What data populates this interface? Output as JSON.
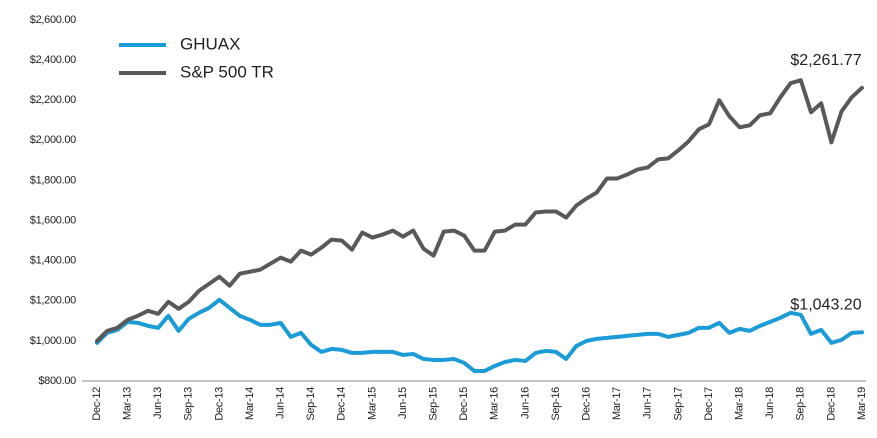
{
  "chart_data": {
    "type": "line",
    "categories": [
      "Dec-12",
      null,
      null,
      "Mar-13",
      null,
      null,
      "Jun-13",
      null,
      null,
      "Sep-13",
      null,
      null,
      "Dec-13",
      null,
      null,
      "Mar-14",
      null,
      null,
      "Jun-14",
      null,
      null,
      "Sep-14",
      null,
      null,
      "Dec-14",
      null,
      null,
      "Mar-15",
      null,
      null,
      "Jun-15",
      null,
      null,
      "Sep-15",
      null,
      null,
      "Dec-15",
      null,
      null,
      "Mar-16",
      null,
      null,
      "Jun-16",
      null,
      null,
      "Sep-16",
      null,
      null,
      "Dec-16",
      null,
      null,
      "Mar-17",
      null,
      null,
      "Jun-17",
      null,
      null,
      "Sep-17",
      null,
      null,
      "Dec-17",
      null,
      null,
      "Mar-18",
      null,
      null,
      "Jun-18",
      null,
      null,
      "Sep-18",
      null,
      null,
      "Dec-18",
      null,
      null,
      "Mar-19"
    ],
    "series": [
      {
        "name": "GHUAX",
        "color": "#1b9bd7",
        "values": [
          990,
          1040,
          1055,
          1095,
          1090,
          1075,
          1065,
          1125,
          1050,
          1110,
          1140,
          1165,
          1205,
          1165,
          1125,
          1105,
          1080,
          1080,
          1090,
          1020,
          1040,
          980,
          945,
          960,
          955,
          940,
          940,
          945,
          945,
          945,
          930,
          935,
          910,
          905,
          905,
          910,
          890,
          850,
          850,
          875,
          895,
          905,
          900,
          940,
          950,
          945,
          910,
          975,
          1000,
          1010,
          1015,
          1020,
          1025,
          1030,
          1035,
          1035,
          1020,
          1030,
          1040,
          1065,
          1065,
          1090,
          1040,
          1060,
          1050,
          1075,
          1095,
          1115,
          1140,
          1130,
          1035,
          1055,
          990,
          1005,
          1040,
          1043.2
        ],
        "value_labels": [
          null,
          null,
          null,
          null,
          null,
          null,
          null,
          null,
          null,
          null,
          null,
          null,
          null,
          null,
          null,
          null,
          null,
          null,
          null,
          null,
          null,
          null,
          null,
          null,
          null,
          null,
          null,
          null,
          null,
          null,
          null,
          null,
          null,
          null,
          null,
          null,
          null,
          null,
          null,
          null,
          null,
          null,
          null,
          null,
          null,
          null,
          null,
          null,
          null,
          null,
          null,
          null,
          null,
          null,
          null,
          null,
          null,
          null,
          null,
          null,
          null,
          null,
          null,
          null,
          null,
          null,
          null,
          null,
          null,
          null,
          null,
          null,
          null,
          null,
          null,
          "$1,043.20"
        ]
      },
      {
        "name": "S&P 500 TR",
        "color": "#58595b",
        "values": [
          1000,
          1050,
          1065,
          1105,
          1125,
          1150,
          1135,
          1195,
          1160,
          1195,
          1250,
          1285,
          1320,
          1275,
          1335,
          1345,
          1355,
          1385,
          1415,
          1395,
          1450,
          1430,
          1465,
          1505,
          1500,
          1455,
          1540,
          1515,
          1530,
          1550,
          1520,
          1550,
          1460,
          1425,
          1545,
          1550,
          1525,
          1450,
          1450,
          1545,
          1550,
          1580,
          1580,
          1640,
          1645,
          1645,
          1615,
          1675,
          1710,
          1740,
          1810,
          1810,
          1830,
          1855,
          1865,
          1905,
          1910,
          1950,
          1995,
          2055,
          2080,
          2200,
          2120,
          2065,
          2075,
          2125,
          2135,
          2215,
          2285,
          2300,
          2140,
          2185,
          1990,
          2145,
          2215,
          2261.77
        ],
        "value_labels": [
          null,
          null,
          null,
          null,
          null,
          null,
          null,
          null,
          null,
          null,
          null,
          null,
          null,
          null,
          null,
          null,
          null,
          null,
          null,
          null,
          null,
          null,
          null,
          null,
          null,
          null,
          null,
          null,
          null,
          null,
          null,
          null,
          null,
          null,
          null,
          null,
          null,
          null,
          null,
          null,
          null,
          null,
          null,
          null,
          null,
          null,
          null,
          null,
          null,
          null,
          null,
          null,
          null,
          null,
          null,
          null,
          null,
          null,
          null,
          null,
          null,
          null,
          null,
          null,
          null,
          null,
          null,
          null,
          null,
          null,
          null,
          null,
          null,
          null,
          null,
          "$2,261.77"
        ]
      }
    ],
    "ylim": [
      800,
      2600
    ],
    "yticks": [
      {
        "value": 800,
        "label": "$800.00"
      },
      {
        "value": 1000,
        "label": "$1,000.00"
      },
      {
        "value": 1200,
        "label": "$1,200.00"
      },
      {
        "value": 1400,
        "label": "$1,400.00"
      },
      {
        "value": 1600,
        "label": "$1,600.00"
      },
      {
        "value": 1800,
        "label": "$1,800.00"
      },
      {
        "value": 2000,
        "label": "$2,000.00"
      },
      {
        "value": 2200,
        "label": "$2,200.00"
      },
      {
        "value": 2400,
        "label": "$2,400.00"
      },
      {
        "value": 2600,
        "label": "$2,600.00"
      }
    ],
    "grid": false,
    "legend": "top-left"
  }
}
